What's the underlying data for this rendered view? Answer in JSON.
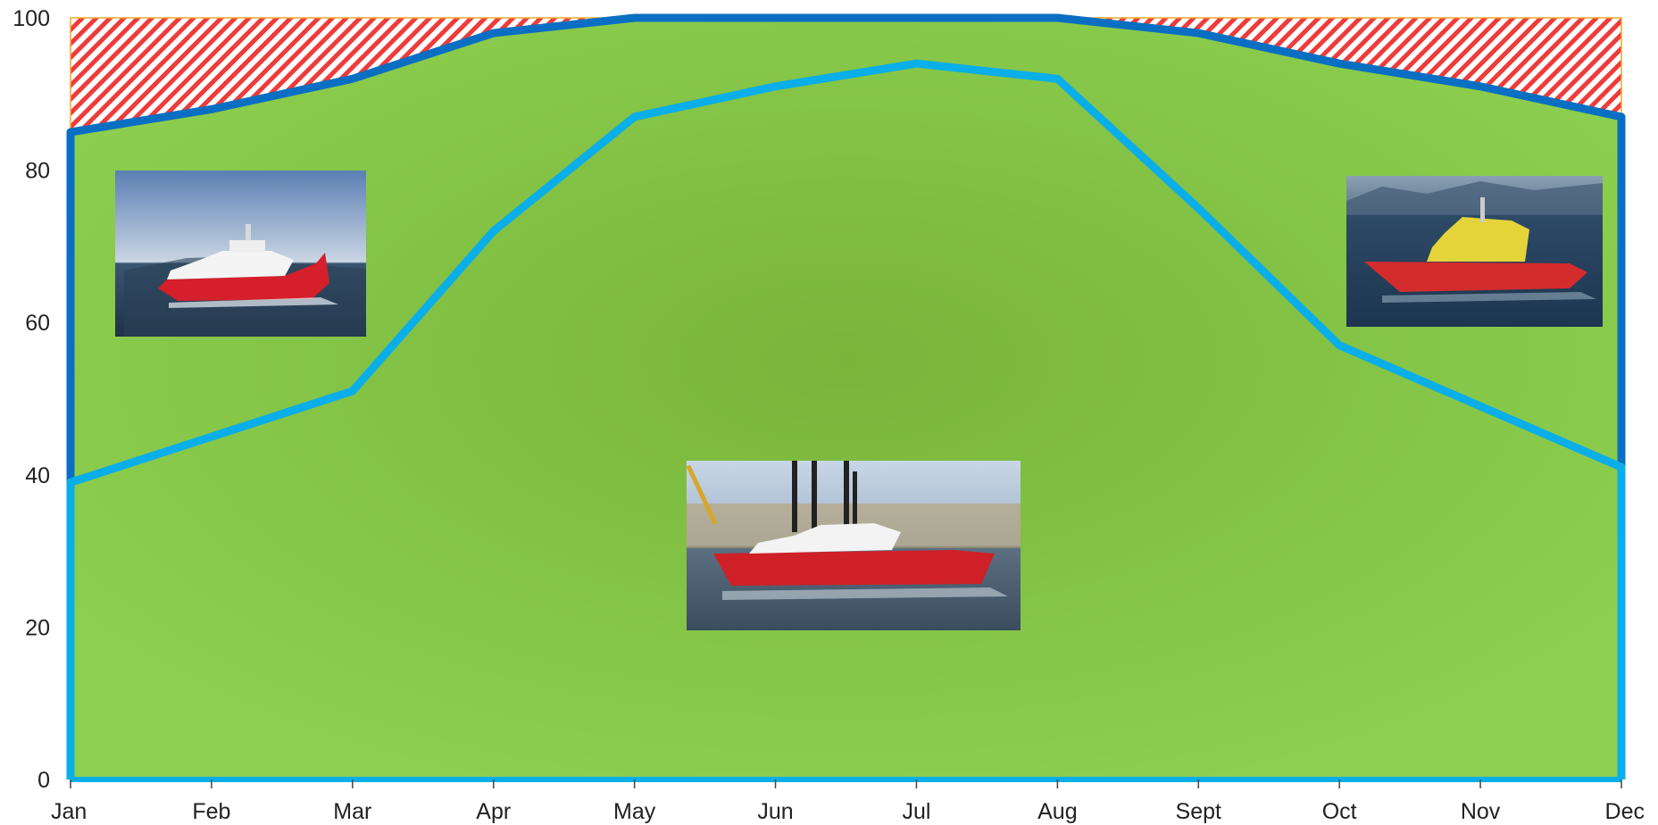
{
  "chart_data": {
    "type": "area",
    "categories": [
      "Jan",
      "Feb",
      "Mar",
      "Apr",
      "May",
      "Jun",
      "Jul",
      "Aug",
      "Sept",
      "Oct",
      "Nov",
      "Dec"
    ],
    "series": [
      {
        "values": [
          85,
          88,
          92,
          98,
          100,
          100,
          100,
          100,
          98,
          94,
          91,
          87
        ],
        "color": "#0a6fc2"
      },
      {
        "values": [
          39,
          45,
          51,
          72,
          87,
          91,
          94,
          92,
          75,
          57,
          49,
          41
        ],
        "color": "#0aaee8"
      }
    ],
    "ylim": [
      0,
      100
    ],
    "yticks": [
      "0",
      "20",
      "40",
      "60",
      "80",
      "100"
    ],
    "grid": false,
    "legend": "none",
    "colors": {
      "area_fill": "#8dcf4f",
      "area_fill_center": "#79b53a",
      "hatch_red": "#ee3b3b",
      "hatch_border": "#f2a62a"
    },
    "images": [
      {
        "icon": "red-white-vessel-photo"
      },
      {
        "icon": "harbor-vessel-photo"
      },
      {
        "icon": "yellow-red-vessel-photo"
      }
    ]
  }
}
